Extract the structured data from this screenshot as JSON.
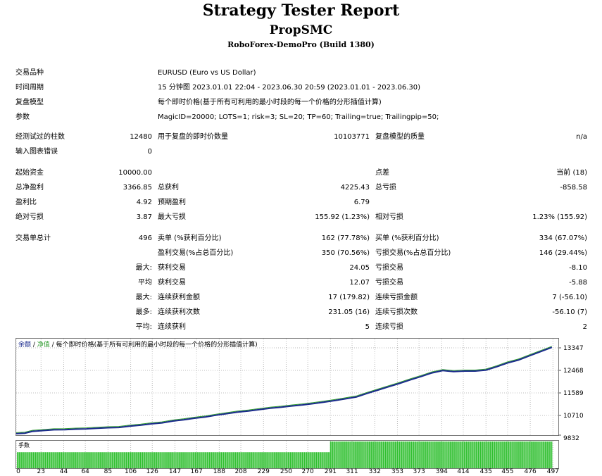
{
  "header": {
    "title": "Strategy Tester Report",
    "subtitle": "PropSMC",
    "server": "RoboForex-DemoPro (Build 1380)"
  },
  "info": {
    "symbol_label": "交易品种",
    "symbol_value": "EURUSD (Euro vs US Dollar)",
    "period_label": "时间周期",
    "period_value": "15 分钟图 2023.01.01 22:04 - 2023.06.30 20:59 (2023.01.01 - 2023.06.30)",
    "model_label": "复盘模型",
    "model_value": "每个即时价格(基于所有可利用的最小时段的每一个价格的分形插值计算)",
    "params_label": "参数",
    "params_value": "MagicID=20000; LOTS=1; risk=3; SL=20; TP=60; Trailing=true; Trailingpip=50;"
  },
  "bars": {
    "bars_label": "经测试过的柱数",
    "bars_value": "12480",
    "ticks_label": "用于复盘的即时价数量",
    "ticks_value": "10103771",
    "quality_label": "复盘模型的质量",
    "quality_value": "n/a",
    "errors_label": "输入图表错误",
    "errors_value": "0"
  },
  "results": {
    "deposit_label": "起始资金",
    "deposit_value": "10000.00",
    "spread_label": "点差",
    "spread_value": "当前 (18)",
    "net_label": "总净盈利",
    "net_value": "3366.85",
    "gross_profit_label": "总获利",
    "gross_profit_value": "4225.43",
    "gross_loss_label": "总亏损",
    "gross_loss_value": "-858.58",
    "pf_label": "盈利比",
    "pf_value": "4.92",
    "payoff_label": "预期盈利",
    "payoff_value": "6.79",
    "abs_dd_label": "绝对亏损",
    "abs_dd_value": "3.87",
    "max_dd_label": "最大亏损",
    "max_dd_value": "155.92 (1.23%)",
    "rel_dd_label": "相对亏损",
    "rel_dd_value": "1.23% (155.92)"
  },
  "trades": {
    "total_label": "交易单总计",
    "total_value": "496",
    "short_label": "卖单 (%获利百分比)",
    "short_value": "162 (77.78%)",
    "long_label": "买单 (%获利百分比)",
    "long_value": "334 (67.07%)",
    "win_label": "盈利交易(%占总百分比)",
    "win_value": "350 (70.56%)",
    "loss_label": "亏损交易(%占总百分比)",
    "loss_value": "146 (29.44%)",
    "largest_prefix": "最大:",
    "largest_win_label": "获利交易",
    "largest_win_value": "24.05",
    "largest_loss_label": "亏损交易",
    "largest_loss_value": "-8.10",
    "avg_prefix": "平均",
    "avg_win_label": "获利交易",
    "avg_win_value": "12.07",
    "avg_loss_label": "亏损交易",
    "avg_loss_value": "-5.88",
    "maxcons_prefix": "最大:",
    "maxcons_win_label": "连续获利金额",
    "maxcons_win_value": "17 (179.82)",
    "maxcons_loss_label": "连续亏损金额",
    "maxcons_loss_value": "7 (-56.10)",
    "maxconsamt_prefix": "最多:",
    "maxconsamt_win_label": "连续获利次数",
    "maxconsamt_win_value": "231.05 (16)",
    "maxconsamt_loss_label": "连续亏损次数",
    "maxconsamt_loss_value": "-56.10 (7)",
    "avgcons_prefix": "平均:",
    "avgcons_win_label": "连续获利",
    "avgcons_win_value": "5",
    "avgcons_loss_label": "连续亏损",
    "avgcons_loss_value": "2"
  },
  "colors": {
    "balance": "#1a2a8c",
    "equity": "#2e9b2e",
    "volume": "#2fbf2f",
    "grid": "#bcbcbc"
  },
  "chart_data": {
    "type": "line",
    "legend": {
      "balance": "余额",
      "sep1": " / ",
      "equity": "净值",
      "sep2": " / ",
      "model": "每个即时价格(基于所有可利用的最小时段的每一个价格的分形插值计算)"
    },
    "volume_label": "手数",
    "y_ticks": [
      9832,
      10710,
      11589,
      12468,
      13347
    ],
    "ylim": [
      9832,
      13347
    ],
    "x_ticks": [
      0,
      23,
      44,
      64,
      85,
      106,
      126,
      147,
      167,
      188,
      208,
      229,
      250,
      270,
      291,
      311,
      332,
      353,
      373,
      394,
      414,
      435,
      455,
      476,
      497
    ],
    "xlim": [
      0,
      502
    ],
    "grid": true,
    "series": [
      {
        "name": "余额",
        "x": [
          0,
          8,
          15,
          25,
          35,
          45,
          55,
          65,
          75,
          85,
          95,
          105,
          115,
          125,
          135,
          145,
          155,
          165,
          175,
          185,
          195,
          205,
          215,
          225,
          235,
          245,
          255,
          265,
          275,
          285,
          295,
          305,
          315,
          325,
          335,
          345,
          355,
          365,
          375,
          385,
          395,
          405,
          415,
          425,
          435,
          445,
          455,
          465,
          475,
          485,
          496
        ],
        "values": [
          10000,
          10020,
          10090,
          10120,
          10150,
          10155,
          10175,
          10185,
          10210,
          10230,
          10240,
          10290,
          10330,
          10380,
          10420,
          10490,
          10540,
          10600,
          10650,
          10720,
          10780,
          10840,
          10880,
          10940,
          10990,
          11030,
          11080,
          11120,
          11170,
          11230,
          11290,
          11360,
          11430,
          11570,
          11700,
          11830,
          11960,
          12100,
          12230,
          12370,
          12460,
          12420,
          12440,
          12440,
          12480,
          12610,
          12760,
          12870,
          13030,
          13190,
          13367
        ]
      }
    ],
    "volume": {
      "lots_early": 0.6,
      "lots_late": 1.0,
      "switch_trade": 291
    }
  }
}
